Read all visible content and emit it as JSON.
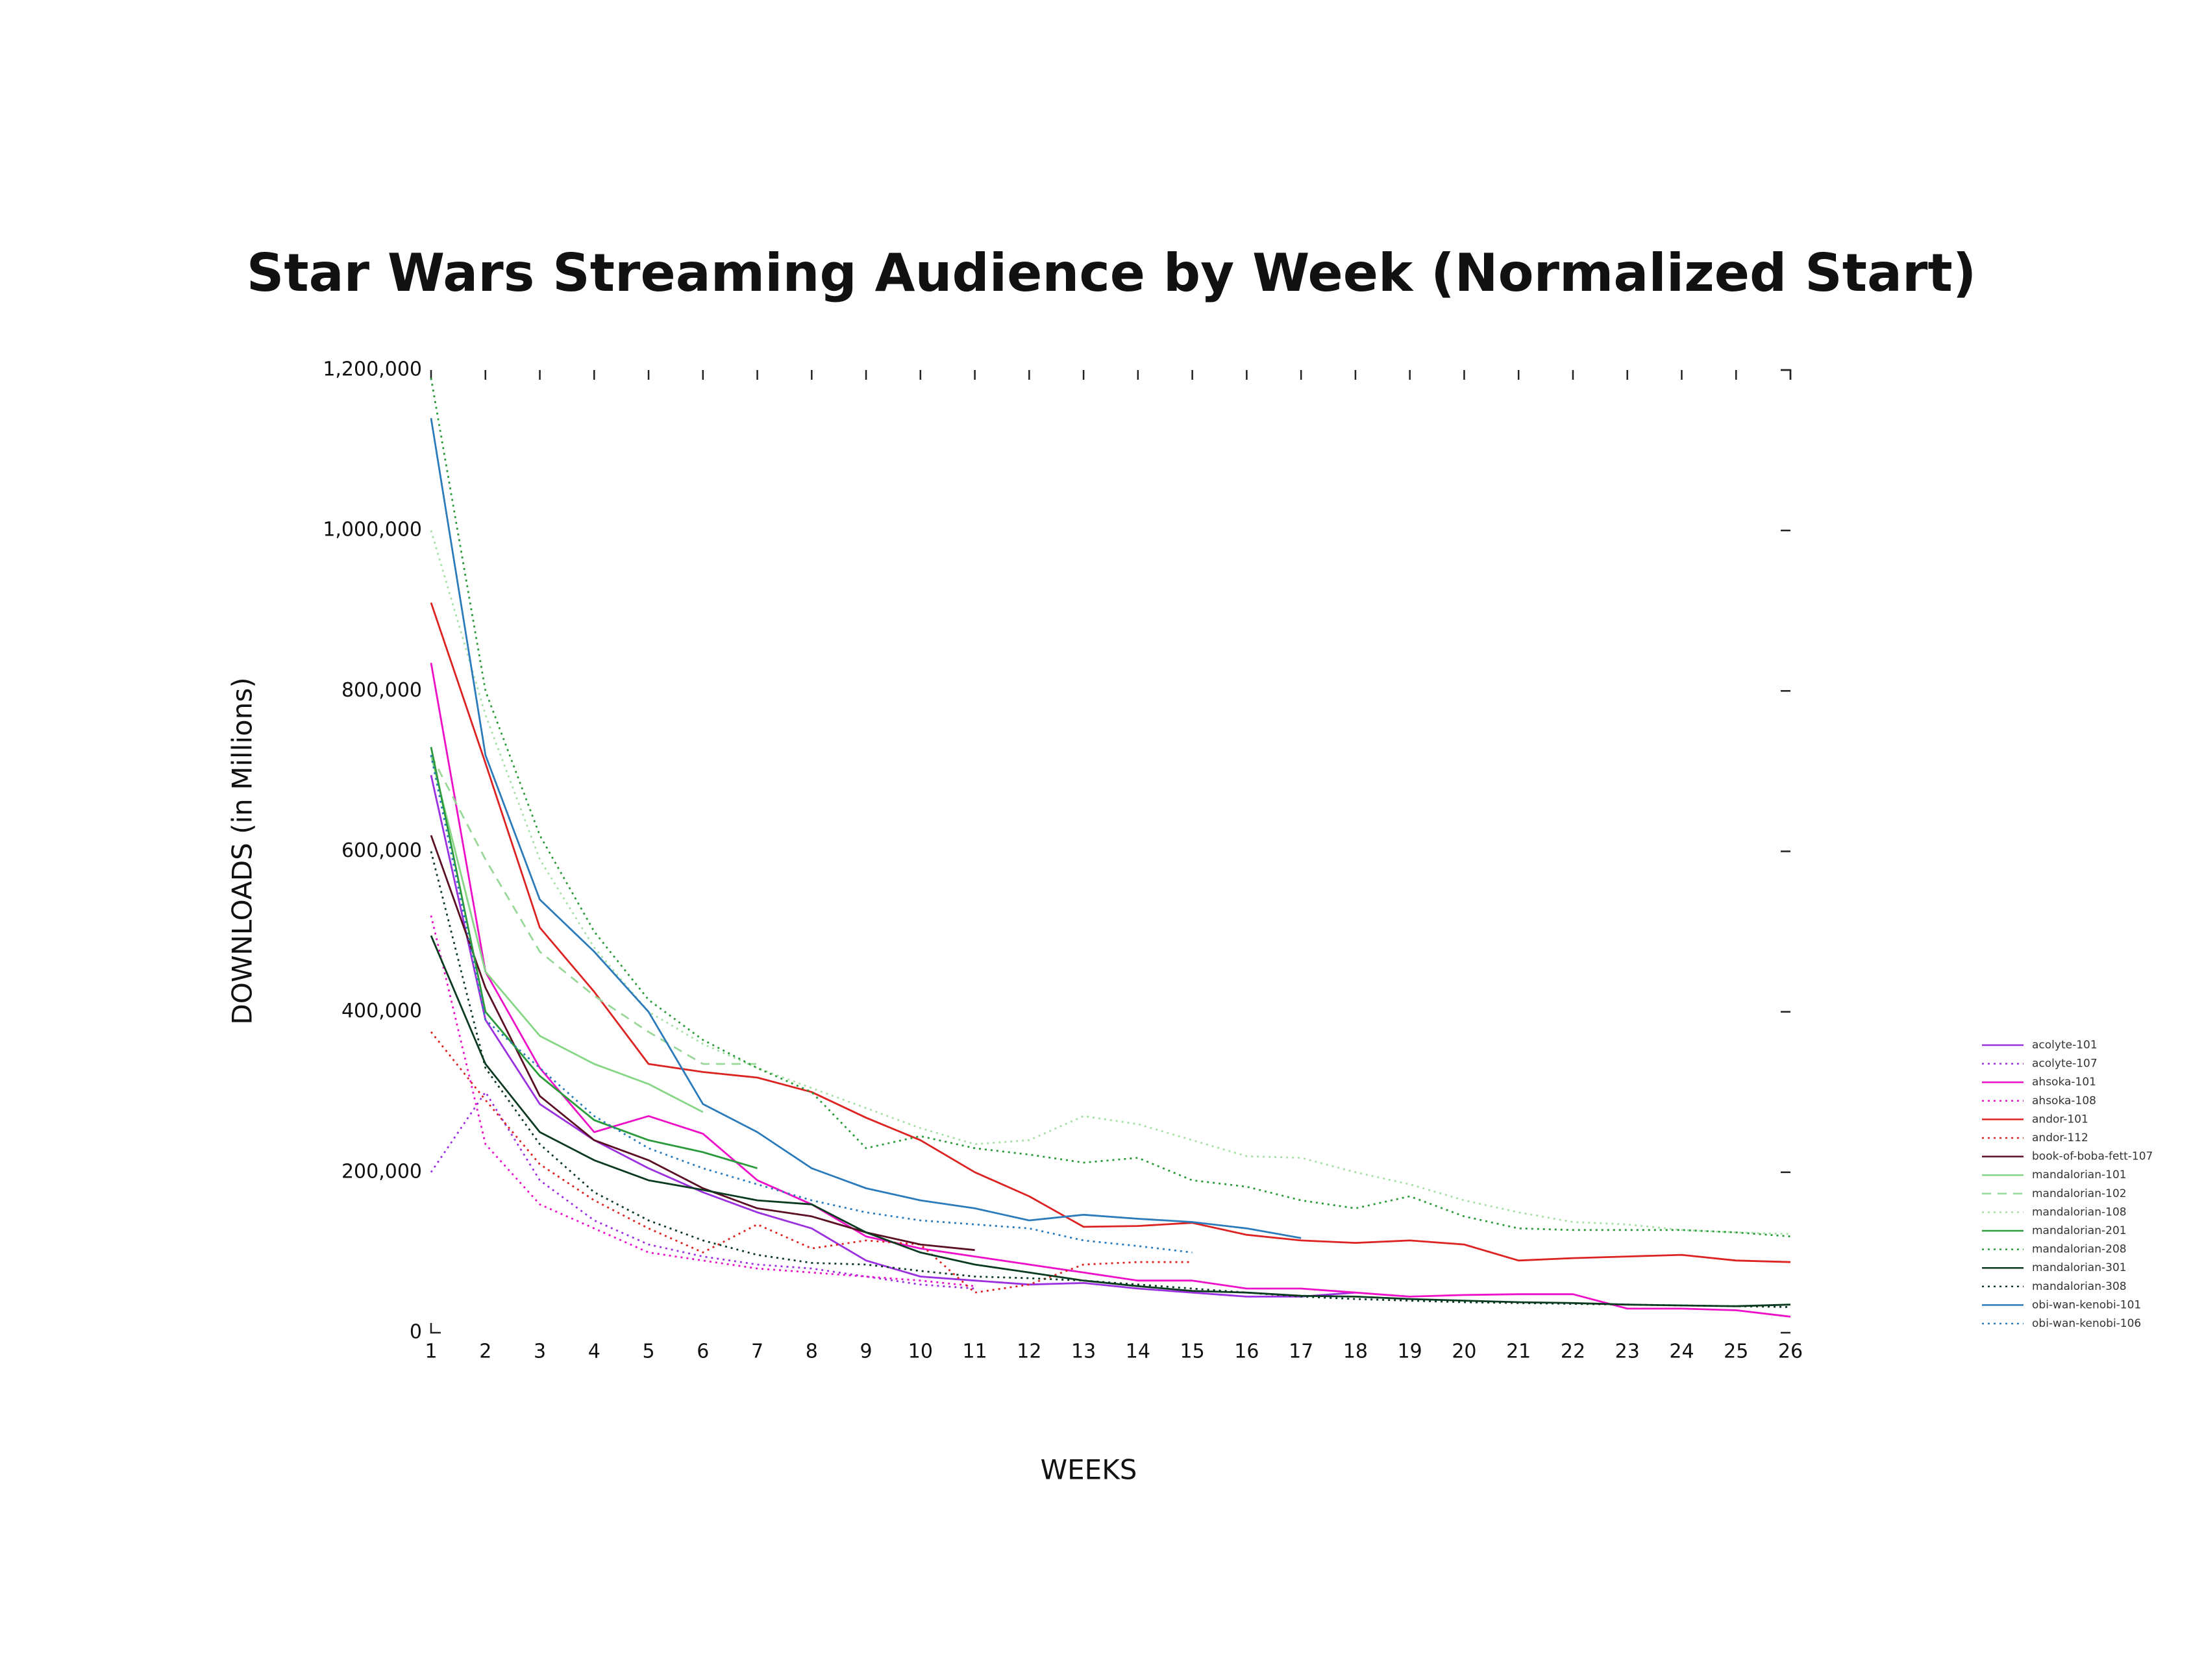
{
  "chart_data": {
    "type": "line",
    "title": "Star Wars Streaming Audience by Week (Normalized Start)",
    "x_label": "WEEKS",
    "y_label": "DOWNLOADS (in Millions)",
    "x": [
      1,
      2,
      3,
      4,
      5,
      6,
      7,
      8,
      9,
      10,
      11,
      12,
      13,
      14,
      15,
      16,
      17,
      18,
      19,
      20,
      21,
      22,
      23,
      24,
      25,
      26
    ],
    "xlim": [
      1,
      26
    ],
    "xticks": [
      1,
      2,
      3,
      4,
      5,
      6,
      7,
      8,
      9,
      10,
      11,
      12,
      13,
      14,
      15,
      16,
      17,
      18,
      19,
      20,
      21,
      22,
      23,
      24,
      25,
      26
    ],
    "ylim": [
      0,
      1200000
    ],
    "yticks": [
      0,
      {
        "value": 200000,
        "label": "200,000"
      },
      {
        "value": 400000,
        "label": "400,000"
      },
      {
        "value": 600000,
        "label": "600,000"
      },
      {
        "value": 800000,
        "label": "800,000"
      },
      {
        "value": 1000000,
        "label": "1,000,000"
      },
      {
        "value": 1200000,
        "label": "1,200,000"
      }
    ],
    "grid": false,
    "legend": "right",
    "series": [
      {
        "name": "acolyte-101",
        "color": "#9b30e0",
        "style": "solid",
        "values": [
          695000,
          390000,
          285000,
          240000,
          205000,
          175000,
          150000,
          130000,
          90000,
          70000,
          65000,
          60000,
          62000,
          55000,
          50000,
          45000,
          45000,
          50000,
          null,
          null,
          null,
          null,
          null,
          null,
          null,
          null
        ]
      },
      {
        "name": "acolyte-107",
        "color": "#9b30e0",
        "style": "dotted",
        "values": [
          200000,
          300000,
          190000,
          140000,
          110000,
          95000,
          85000,
          80000,
          70000,
          60000,
          55000,
          null,
          null,
          null,
          null,
          null,
          null,
          null,
          null,
          null,
          null,
          null,
          null,
          null,
          null,
          null
        ]
      },
      {
        "name": "ahsoka-101",
        "color": "#ee10c8",
        "style": "solid",
        "values": [
          835000,
          450000,
          330000,
          250000,
          270000,
          248000,
          190000,
          160000,
          120000,
          105000,
          95000,
          85000,
          75000,
          65000,
          65000,
          55000,
          55000,
          50000,
          45000,
          47000,
          48000,
          48000,
          30000,
          30000,
          28000,
          20000
        ]
      },
      {
        "name": "ahsoka-108",
        "color": "#ee10c8",
        "style": "dotted",
        "values": [
          520000,
          235000,
          160000,
          130000,
          100000,
          90000,
          80000,
          75000,
          70000,
          65000,
          58000,
          null,
          null,
          null,
          null,
          null,
          null,
          null,
          null,
          null,
          null,
          null,
          null,
          null,
          null,
          null
        ]
      },
      {
        "name": "andor-101",
        "color": "#dd2222",
        "style": "solid",
        "values": [
          910000,
          710000,
          505000,
          425000,
          335000,
          325000,
          318000,
          300000,
          268000,
          240000,
          200000,
          170000,
          132000,
          133000,
          137000,
          122000,
          115000,
          112000,
          115000,
          110000,
          90000,
          93000,
          95000,
          97000,
          90000,
          88000
        ]
      },
      {
        "name": "andor-112",
        "color": "#dd2222",
        "style": "dotted",
        "values": [
          375000,
          290000,
          210000,
          165000,
          130000,
          100000,
          135000,
          105000,
          115000,
          110000,
          50000,
          60000,
          85000,
          88000,
          88000,
          null,
          null,
          null,
          null,
          null,
          null,
          null,
          null,
          null,
          null,
          null
        ]
      },
      {
        "name": "book-of-boba-fett-107",
        "color": "#5a0f22",
        "style": "solid",
        "values": [
          620000,
          430000,
          295000,
          240000,
          215000,
          180000,
          155000,
          145000,
          125000,
          110000,
          103000,
          null,
          null,
          null,
          null,
          null,
          null,
          null,
          null,
          null,
          null,
          null,
          null,
          null,
          null,
          null
        ]
      },
      {
        "name": "mandalorian-101",
        "color": "#86d686",
        "style": "solid",
        "values": [
          720000,
          450000,
          370000,
          335000,
          310000,
          275000,
          null,
          null,
          null,
          null,
          null,
          null,
          null,
          null,
          null,
          null,
          null,
          null,
          null,
          null,
          null,
          null,
          null,
          null,
          null,
          null
        ]
      },
      {
        "name": "mandalorian-102",
        "color": "#9ad89a",
        "style": "dashed",
        "values": [
          720000,
          590000,
          475000,
          420000,
          375000,
          335000,
          335000,
          null,
          null,
          null,
          null,
          null,
          null,
          null,
          null,
          null,
          null,
          null,
          null,
          null,
          null,
          null,
          null,
          null,
          null,
          null
        ]
      },
      {
        "name": "mandalorian-108",
        "color": "#a8e0a8",
        "style": "dotted",
        "values": [
          1000000,
          770000,
          590000,
          480000,
          400000,
          360000,
          330000,
          305000,
          280000,
          255000,
          235000,
          240000,
          270000,
          260000,
          240000,
          220000,
          218000,
          200000,
          185000,
          165000,
          150000,
          138000,
          135000,
          128000,
          125000,
          123000
        ]
      },
      {
        "name": "mandalorian-201",
        "color": "#2a9a3a",
        "style": "solid",
        "values": [
          730000,
          400000,
          320000,
          265000,
          240000,
          225000,
          205000,
          null,
          null,
          null,
          null,
          null,
          null,
          null,
          null,
          null,
          null,
          null,
          null,
          null,
          null,
          null,
          null,
          null,
          null,
          null
        ]
      },
      {
        "name": "mandalorian-208",
        "color": "#2a9a3a",
        "style": "dotted",
        "values": [
          1190000,
          800000,
          620000,
          500000,
          415000,
          365000,
          330000,
          300000,
          230000,
          245000,
          230000,
          222000,
          212000,
          218000,
          190000,
          182000,
          165000,
          155000,
          170000,
          145000,
          130000,
          128000,
          128000,
          128000,
          125000,
          120000
        ]
      },
      {
        "name": "mandalorian-301",
        "color": "#0a3a20",
        "style": "solid",
        "values": [
          495000,
          335000,
          250000,
          215000,
          190000,
          178000,
          165000,
          160000,
          125000,
          100000,
          85000,
          75000,
          65000,
          58000,
          52000,
          50000,
          46000,
          45000,
          42000,
          40000,
          38000,
          37000,
          35000,
          34000,
          33000,
          35000
        ]
      },
      {
        "name": "mandalorian-308",
        "color": "#0a3a20",
        "style": "dotted",
        "values": [
          600000,
          330000,
          235000,
          175000,
          140000,
          115000,
          97000,
          87000,
          85000,
          77000,
          70000,
          68000,
          65000,
          60000,
          55000,
          50000,
          45000,
          42000,
          40000,
          38000,
          37000,
          36000,
          35000,
          34000,
          33000,
          32000
        ]
      },
      {
        "name": "obi-wan-kenobi-101",
        "color": "#2b7bbb",
        "style": "solid",
        "values": [
          1140000,
          720000,
          540000,
          475000,
          400000,
          285000,
          250000,
          205000,
          180000,
          165000,
          155000,
          140000,
          147000,
          142000,
          138000,
          130000,
          118000,
          null,
          null,
          null,
          null,
          null,
          null,
          null,
          null,
          null
        ]
      },
      {
        "name": "obi-wan-kenobi-106",
        "color": "#2b7bbb",
        "style": "dotted",
        "values": [
          720000,
          390000,
          330000,
          270000,
          230000,
          205000,
          185000,
          165000,
          150000,
          140000,
          135000,
          130000,
          115000,
          108000,
          100000,
          null,
          null,
          null,
          null,
          null,
          null,
          null,
          null,
          null,
          null,
          null
        ]
      }
    ]
  }
}
